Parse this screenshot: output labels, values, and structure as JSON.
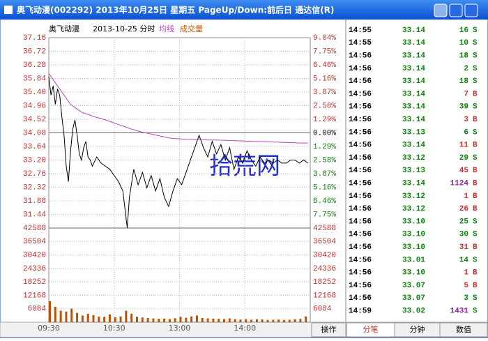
{
  "window": {
    "title": "奥飞动漫(002292) 2013年10月25日 星期五 PageUp/Down:前后日 通达信(R)"
  },
  "chart_data": [
    {
      "type": "line",
      "title": "奥飞动漫",
      "subtitle": "2013-10-25 分时",
      "xlim": [
        0,
        240
      ],
      "xticks": [
        {
          "value": 0,
          "label": "09:30"
        },
        {
          "value": 60,
          "label": "10:30"
        },
        {
          "value": 120,
          "label": "13:00"
        },
        {
          "value": 180,
          "label": "14:00"
        }
      ],
      "ylim": [
        31.0,
        37.16
      ],
      "yticks": [
        37.16,
        36.72,
        36.28,
        35.84,
        {
          "value": 35.4,
          "label": "35.40"
        },
        34.96,
        34.52,
        34.08,
        33.64,
        {
          "value": 33.2,
          "label": "33.20"
        },
        32.76,
        32.32,
        31.88,
        31.44
      ],
      "y2lim": [
        -9.04,
        9.04
      ],
      "y2ticks": [
        {
          "value": 9.04,
          "label": "9.04%"
        },
        {
          "value": 7.75,
          "label": "7.75%"
        },
        {
          "value": 6.46,
          "label": "6.46%"
        },
        {
          "value": 5.16,
          "label": "5.16%"
        },
        {
          "value": 3.87,
          "label": "3.87%"
        },
        {
          "value": 2.58,
          "label": "2.58%"
        },
        {
          "value": 1.29,
          "label": "1.29%"
        },
        {
          "value": 0,
          "label": "0.00%"
        },
        {
          "value": -1.29,
          "label": "1.29%"
        },
        {
          "value": -2.58,
          "label": "2.58%"
        },
        {
          "value": -3.87,
          "label": "3.87%"
        },
        {
          "value": -5.16,
          "label": "5.16%"
        },
        {
          "value": -6.46,
          "label": "6.46%"
        },
        {
          "value": -7.75,
          "label": "7.75%"
        }
      ],
      "x": [
        0,
        2,
        4,
        6,
        8,
        10,
        12,
        14,
        16,
        18,
        20,
        22,
        24,
        26,
        28,
        30,
        32,
        34,
        36,
        38,
        40,
        44,
        48,
        52,
        56,
        60,
        64,
        68,
        70,
        72,
        74,
        78,
        82,
        86,
        90,
        94,
        98,
        102,
        106,
        110,
        114,
        118,
        122,
        126,
        130,
        134,
        138,
        142,
        146,
        150,
        154,
        158,
        162,
        166,
        170,
        174,
        178,
        182,
        186,
        190,
        194,
        198,
        202,
        206,
        210,
        214,
        218,
        222,
        226,
        230,
        234,
        238
      ],
      "series": [
        {
          "name": "价格",
          "color": "#000000",
          "values": [
            35.9,
            35.3,
            35.6,
            35.0,
            35.5,
            35.3,
            34.6,
            34.0,
            33.0,
            32.5,
            33.5,
            34.2,
            34.5,
            34.0,
            33.4,
            33.2,
            33.6,
            33.8,
            33.3,
            33.2,
            33.0,
            33.3,
            33.1,
            33.0,
            32.9,
            32.7,
            32.5,
            32.2,
            31.6,
            31.0,
            32.0,
            32.9,
            32.4,
            32.8,
            32.3,
            32.7,
            32.2,
            32.6,
            32.0,
            31.7,
            32.2,
            32.6,
            32.4,
            32.8,
            33.2,
            33.6,
            34.0,
            33.6,
            33.3,
            33.8,
            33.4,
            33.7,
            33.2,
            33.6,
            32.9,
            33.3,
            33.1,
            33.5,
            33.2,
            33.0,
            33.3,
            33.1,
            33.2,
            33.1,
            33.2,
            33.1,
            33.1,
            33.2,
            33.2,
            33.1,
            33.2,
            33.1
          ]
        },
        {
          "name": "均线",
          "color": "#c040c0",
          "values": [
            36.0,
            35.9,
            35.8,
            35.7,
            35.6,
            35.5,
            35.4,
            35.3,
            35.2,
            35.1,
            35.0,
            34.95,
            34.9,
            34.85,
            34.8,
            34.75,
            34.72,
            34.7,
            34.68,
            34.65,
            34.62,
            34.58,
            34.54,
            34.5,
            34.45,
            34.4,
            34.35,
            34.3,
            34.28,
            34.25,
            34.22,
            34.18,
            34.14,
            34.1,
            34.07,
            34.04,
            34.01,
            33.98,
            33.95,
            33.92,
            33.9,
            33.89,
            33.88,
            33.87,
            33.87,
            33.86,
            33.86,
            33.86,
            33.85,
            33.85,
            33.85,
            33.84,
            33.84,
            33.83,
            33.83,
            33.82,
            33.82,
            33.81,
            33.81,
            33.8,
            33.8,
            33.79,
            33.79,
            33.78,
            33.78,
            33.77,
            33.77,
            33.76,
            33.76,
            33.75,
            33.75,
            33.75
          ]
        }
      ]
    },
    {
      "type": "bar",
      "title": "成交量",
      "color": "#c05000",
      "xlim": [
        0,
        240
      ],
      "ylim": [
        0,
        42588
      ],
      "yticks": [
        42588,
        36504,
        30420,
        24336,
        18252,
        12168,
        6084
      ],
      "x": [
        0,
        5,
        10,
        15,
        20,
        25,
        30,
        35,
        40,
        45,
        50,
        55,
        60,
        65,
        70,
        75,
        80,
        85,
        90,
        95,
        100,
        105,
        110,
        115,
        120,
        125,
        130,
        135,
        140,
        145,
        150,
        155,
        160,
        165,
        170,
        175,
        180,
        185,
        190,
        195,
        200,
        205,
        210,
        215,
        220,
        225,
        230,
        235
      ],
      "values": [
        9500,
        7000,
        5200,
        4800,
        6100,
        4200,
        3000,
        3800,
        3200,
        2500,
        2400,
        3500,
        2200,
        2600,
        5200,
        3800,
        2400,
        2100,
        1900,
        1700,
        1500,
        1600,
        1400,
        1800,
        2400,
        2000,
        2600,
        3000,
        1900,
        1700,
        1600,
        1500,
        1400,
        1700,
        1300,
        1200,
        1400,
        1100,
        1300,
        1200,
        1000,
        1100,
        1200,
        1000,
        1100,
        1300,
        1500,
        2600
      ]
    }
  ],
  "trades": {
    "rows": [
      [
        "14:55",
        "33.14",
        16,
        "S"
      ],
      [
        "14:55",
        "33.14",
        10,
        "S"
      ],
      [
        "14:56",
        "33.14",
        18,
        "S"
      ],
      [
        "14:56",
        "33.14",
        2,
        "S"
      ],
      [
        "14:56",
        "33.14",
        18,
        "S"
      ],
      [
        "14:56",
        "33.14",
        7,
        "B"
      ],
      [
        "14:56",
        "33.14",
        39,
        "S"
      ],
      [
        "14:56",
        "33.14",
        3,
        "B"
      ],
      [
        "14:56",
        "33.13",
        6,
        "S"
      ],
      [
        "14:56",
        "33.14",
        11,
        "B"
      ],
      [
        "14:56",
        "33.12",
        29,
        "S"
      ],
      [
        "14:56",
        "33.13",
        45,
        "B"
      ],
      [
        "14:56",
        "33.14",
        1124,
        "B"
      ],
      [
        "14:56",
        "33.12",
        1,
        "B"
      ],
      [
        "14:56",
        "33.12",
        26,
        "B"
      ],
      [
        "14:56",
        "33.10",
        25,
        "S"
      ],
      [
        "14:56",
        "33.10",
        30,
        "S"
      ],
      [
        "14:56",
        "33.10",
        31,
        "B"
      ],
      [
        "14:56",
        "33.01",
        14,
        "S"
      ],
      [
        "14:56",
        "33.10",
        1,
        "B"
      ],
      [
        "14:56",
        "33.07",
        5,
        "B"
      ],
      [
        "14:56",
        "33.07",
        3,
        "S"
      ],
      [
        "14:59",
        "33.02",
        1431,
        "S"
      ]
    ]
  },
  "tabs": [
    "操作",
    "分笔",
    "分钟",
    "数值"
  ],
  "watermark": "拾荒网"
}
